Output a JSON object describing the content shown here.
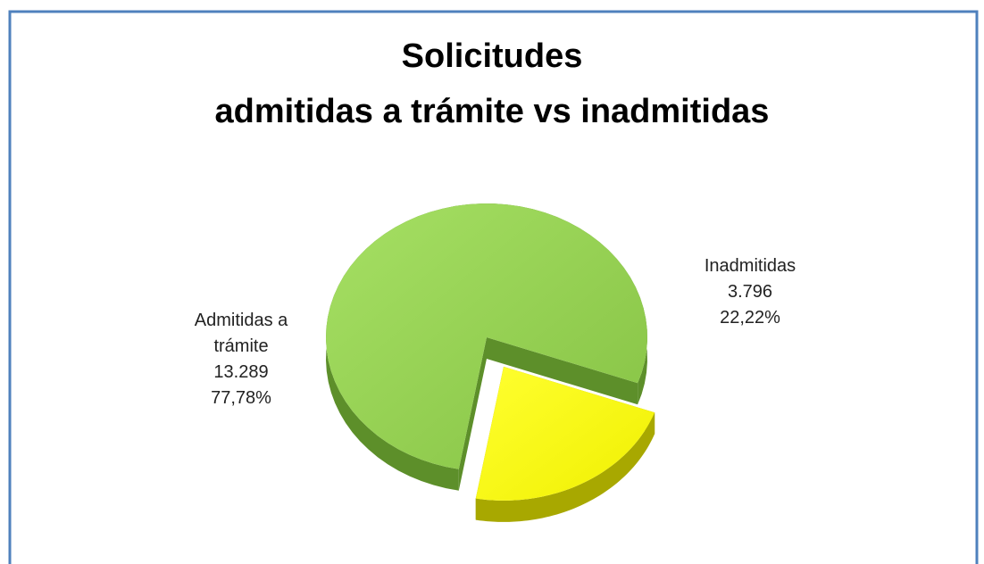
{
  "chart_data": {
    "type": "pie",
    "title": [
      "Solicitudes",
      "admitidas a trámite vs inadmitidas"
    ],
    "categories": [
      "Admitidas a trámite",
      "Inadmitidas"
    ],
    "values": [
      13289,
      3796
    ],
    "value_labels": [
      "13.289",
      "3.796"
    ],
    "percents": [
      77.78,
      22.22
    ],
    "percent_labels": [
      "77,78%",
      "22,22%"
    ],
    "colors": [
      "#92d050",
      "#ffff00"
    ],
    "exploded": [
      false,
      true
    ]
  }
}
